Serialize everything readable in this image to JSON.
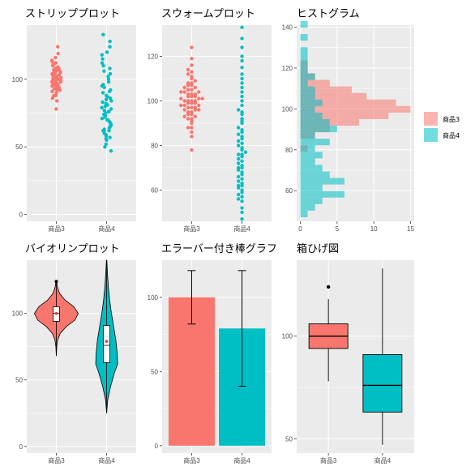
{
  "colors": {
    "product3": "#F8766D",
    "product4": "#00BFC4",
    "panel_bg": "#EBEBEB",
    "grid": "#FFFFFF"
  },
  "legend": {
    "items": [
      "商品3",
      "商品4"
    ]
  },
  "chart_data": [
    {
      "id": "strip",
      "type": "scatter",
      "title": "ストリッププロット",
      "categories": [
        "商品3",
        "商品4"
      ],
      "ylim": [
        -5,
        140
      ],
      "yticks": [
        0,
        50,
        100
      ],
      "series": [
        {
          "category": "商品3",
          "values": [
            78,
            84,
            86,
            88,
            88,
            90,
            91,
            92,
            92,
            93,
            93,
            94,
            94,
            95,
            95,
            96,
            96,
            96,
            97,
            97,
            97,
            98,
            98,
            98,
            99,
            99,
            99,
            100,
            100,
            100,
            100,
            101,
            101,
            101,
            102,
            102,
            102,
            103,
            103,
            103,
            104,
            104,
            104,
            105,
            105,
            106,
            106,
            107,
            107,
            108,
            108,
            109,
            110,
            111,
            112,
            113,
            114,
            116,
            119,
            124
          ]
        },
        {
          "category": "商品4",
          "values": [
            47,
            50,
            52,
            55,
            56,
            57,
            58,
            59,
            60,
            61,
            62,
            62,
            63,
            64,
            65,
            66,
            67,
            68,
            69,
            70,
            70,
            71,
            72,
            73,
            74,
            75,
            76,
            76,
            77,
            78,
            79,
            80,
            81,
            82,
            83,
            84,
            85,
            86,
            87,
            88,
            90,
            91,
            92,
            94,
            95,
            96,
            98,
            100,
            102,
            104,
            106,
            108,
            110,
            112,
            115,
            118,
            120,
            124,
            128,
            133
          ]
        }
      ]
    },
    {
      "id": "swarm",
      "type": "scatter",
      "title": "スウォームプロット",
      "categories": [
        "商品3",
        "商品4"
      ],
      "ylim": [
        46,
        134
      ],
      "yticks": [
        60,
        80,
        100,
        120
      ],
      "series": [
        {
          "category": "商品3",
          "values": [
            78,
            84,
            86,
            88,
            88,
            90,
            91,
            92,
            92,
            93,
            93,
            94,
            94,
            95,
            95,
            96,
            96,
            96,
            97,
            97,
            97,
            98,
            98,
            98,
            99,
            99,
            99,
            100,
            100,
            100,
            100,
            101,
            101,
            101,
            102,
            102,
            102,
            103,
            103,
            103,
            104,
            104,
            104,
            105,
            105,
            106,
            106,
            107,
            107,
            108,
            108,
            109,
            110,
            111,
            112,
            113,
            114,
            116,
            119,
            124
          ]
        },
        {
          "category": "商品4",
          "values": [
            47,
            50,
            52,
            55,
            56,
            57,
            58,
            59,
            60,
            61,
            62,
            62,
            63,
            64,
            65,
            66,
            67,
            68,
            69,
            70,
            70,
            71,
            72,
            73,
            74,
            75,
            76,
            76,
            77,
            78,
            79,
            80,
            81,
            82,
            83,
            84,
            85,
            86,
            87,
            88,
            90,
            91,
            92,
            94,
            95,
            96,
            98,
            100,
            102,
            104,
            106,
            108,
            110,
            112,
            115,
            118,
            120,
            124,
            128,
            133
          ]
        }
      ]
    },
    {
      "id": "hist",
      "type": "bar",
      "title": "ヒストグラム",
      "xlim": [
        -0.5,
        15.5
      ],
      "xticks": [
        0,
        5,
        10,
        15
      ],
      "ylim": [
        45,
        141
      ],
      "yticks": [
        60,
        80,
        100,
        120,
        140
      ],
      "bin_width": 3.2,
      "bin_start": 47,
      "series": [
        {
          "name": "商品3",
          "counts": [
            0,
            0,
            0,
            0,
            0,
            0,
            0,
            0,
            0,
            0,
            1,
            0,
            2,
            4,
            8,
            12,
            15,
            13,
            9,
            7,
            4,
            2,
            1,
            1,
            0,
            0,
            0,
            0,
            0,
            0
          ]
        },
        {
          "name": "商品4",
          "counts": [
            1,
            2,
            3,
            6,
            3,
            6,
            4,
            3,
            2,
            3,
            2,
            4,
            2,
            5,
            4,
            3,
            2,
            3,
            2,
            2,
            1,
            2,
            1,
            1,
            1,
            1,
            0,
            1,
            0,
            1
          ]
        }
      ]
    },
    {
      "id": "violin",
      "type": "violin",
      "title": "バイオリンプロット",
      "categories": [
        "商品3",
        "商品4"
      ],
      "ylim": [
        -5,
        140
      ],
      "yticks": [
        0,
        50,
        100
      ],
      "series": [
        {
          "category": "商品3",
          "min": 68,
          "max": 124,
          "q1": 94,
          "median": 100,
          "q3": 105,
          "mean": 100,
          "outlier": 124,
          "shape": [
            [
              68,
              0
            ],
            [
              75,
              0.02
            ],
            [
              80,
              0.06
            ],
            [
              85,
              0.18
            ],
            [
              90,
              0.45
            ],
            [
              95,
              0.85
            ],
            [
              100,
              1.0
            ],
            [
              105,
              0.8
            ],
            [
              110,
              0.4
            ],
            [
              115,
              0.15
            ],
            [
              120,
              0.05
            ],
            [
              124,
              0.02
            ]
          ]
        },
        {
          "category": "商品4",
          "min": 25,
          "max": 140,
          "q1": 63,
          "median": 76,
          "q3": 91,
          "mean": 79,
          "shape": [
            [
              25,
              0
            ],
            [
              35,
              0.05
            ],
            [
              45,
              0.18
            ],
            [
              55,
              0.35
            ],
            [
              62,
              0.5
            ],
            [
              70,
              0.48
            ],
            [
              80,
              0.42
            ],
            [
              90,
              0.32
            ],
            [
              100,
              0.22
            ],
            [
              110,
              0.14
            ],
            [
              120,
              0.08
            ],
            [
              130,
              0.04
            ],
            [
              140,
              0.01
            ]
          ]
        }
      ]
    },
    {
      "id": "errorbar",
      "type": "bar",
      "title": "エラーバー付き棒グラフ",
      "categories": [
        "商品3",
        "商品4"
      ],
      "ylim": [
        -5,
        125
      ],
      "yticks": [
        0,
        50,
        100
      ],
      "series": [
        {
          "category": "商品3",
          "value": 100,
          "lower": 82,
          "upper": 118
        },
        {
          "category": "商品4",
          "value": 79,
          "lower": 40,
          "upper": 118
        }
      ]
    },
    {
      "id": "box",
      "type": "box",
      "title": "箱ひげ図",
      "categories": [
        "商品3",
        "商品4"
      ],
      "ylim": [
        43,
        137
      ],
      "yticks": [
        50,
        100
      ],
      "series": [
        {
          "category": "商品3",
          "min": 78,
          "q1": 94,
          "median": 100,
          "q3": 106,
          "max": 118,
          "outliers": [
            124
          ]
        },
        {
          "category": "商品4",
          "min": 47,
          "q1": 63,
          "median": 76,
          "q3": 91,
          "max": 133,
          "outliers": []
        }
      ]
    }
  ]
}
